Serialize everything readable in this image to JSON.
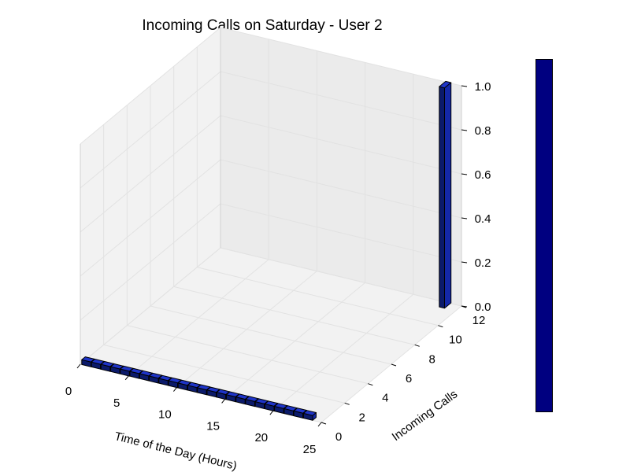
{
  "chart_data": {
    "type": "bar3d",
    "title": "Incoming Calls on Saturday - User 2",
    "xlabel": "Time of the Day (Hours)",
    "ylabel": "Incoming Calls",
    "zlabel": "",
    "xlim": [
      0,
      25
    ],
    "ylim": [
      0,
      12
    ],
    "zlim": [
      0,
      1.0
    ],
    "xticks": [
      "0",
      "5",
      "10",
      "15",
      "20",
      "25"
    ],
    "yticks": [
      "0",
      "2",
      "4",
      "6",
      "8",
      "10",
      "12"
    ],
    "zticks": [
      "0.0",
      "0.2",
      "0.4",
      "0.6",
      "0.8",
      "1.0"
    ],
    "grid": true,
    "colorbar": true,
    "bar_color": "#1428a8",
    "colorbar_color": "#000080",
    "hours": [
      0,
      1,
      2,
      3,
      4,
      5,
      6,
      7,
      8,
      9,
      10,
      11,
      12,
      13,
      14,
      15,
      16,
      17,
      18,
      19,
      20,
      21,
      22,
      23
    ],
    "calls": [
      0,
      0,
      0,
      0,
      0,
      0,
      0,
      0,
      0,
      0,
      0,
      0,
      0,
      0,
      0,
      0,
      0,
      0,
      0,
      0,
      0,
      0,
      0,
      0
    ],
    "values": [
      0,
      0,
      0,
      0,
      0,
      0,
      0,
      0,
      0,
      0,
      0,
      0,
      0,
      0,
      0,
      0,
      0,
      0,
      0,
      0,
      0,
      0,
      0,
      0
    ],
    "tall_bar": {
      "hour": 23,
      "calls": 12,
      "value": 1.0
    }
  }
}
